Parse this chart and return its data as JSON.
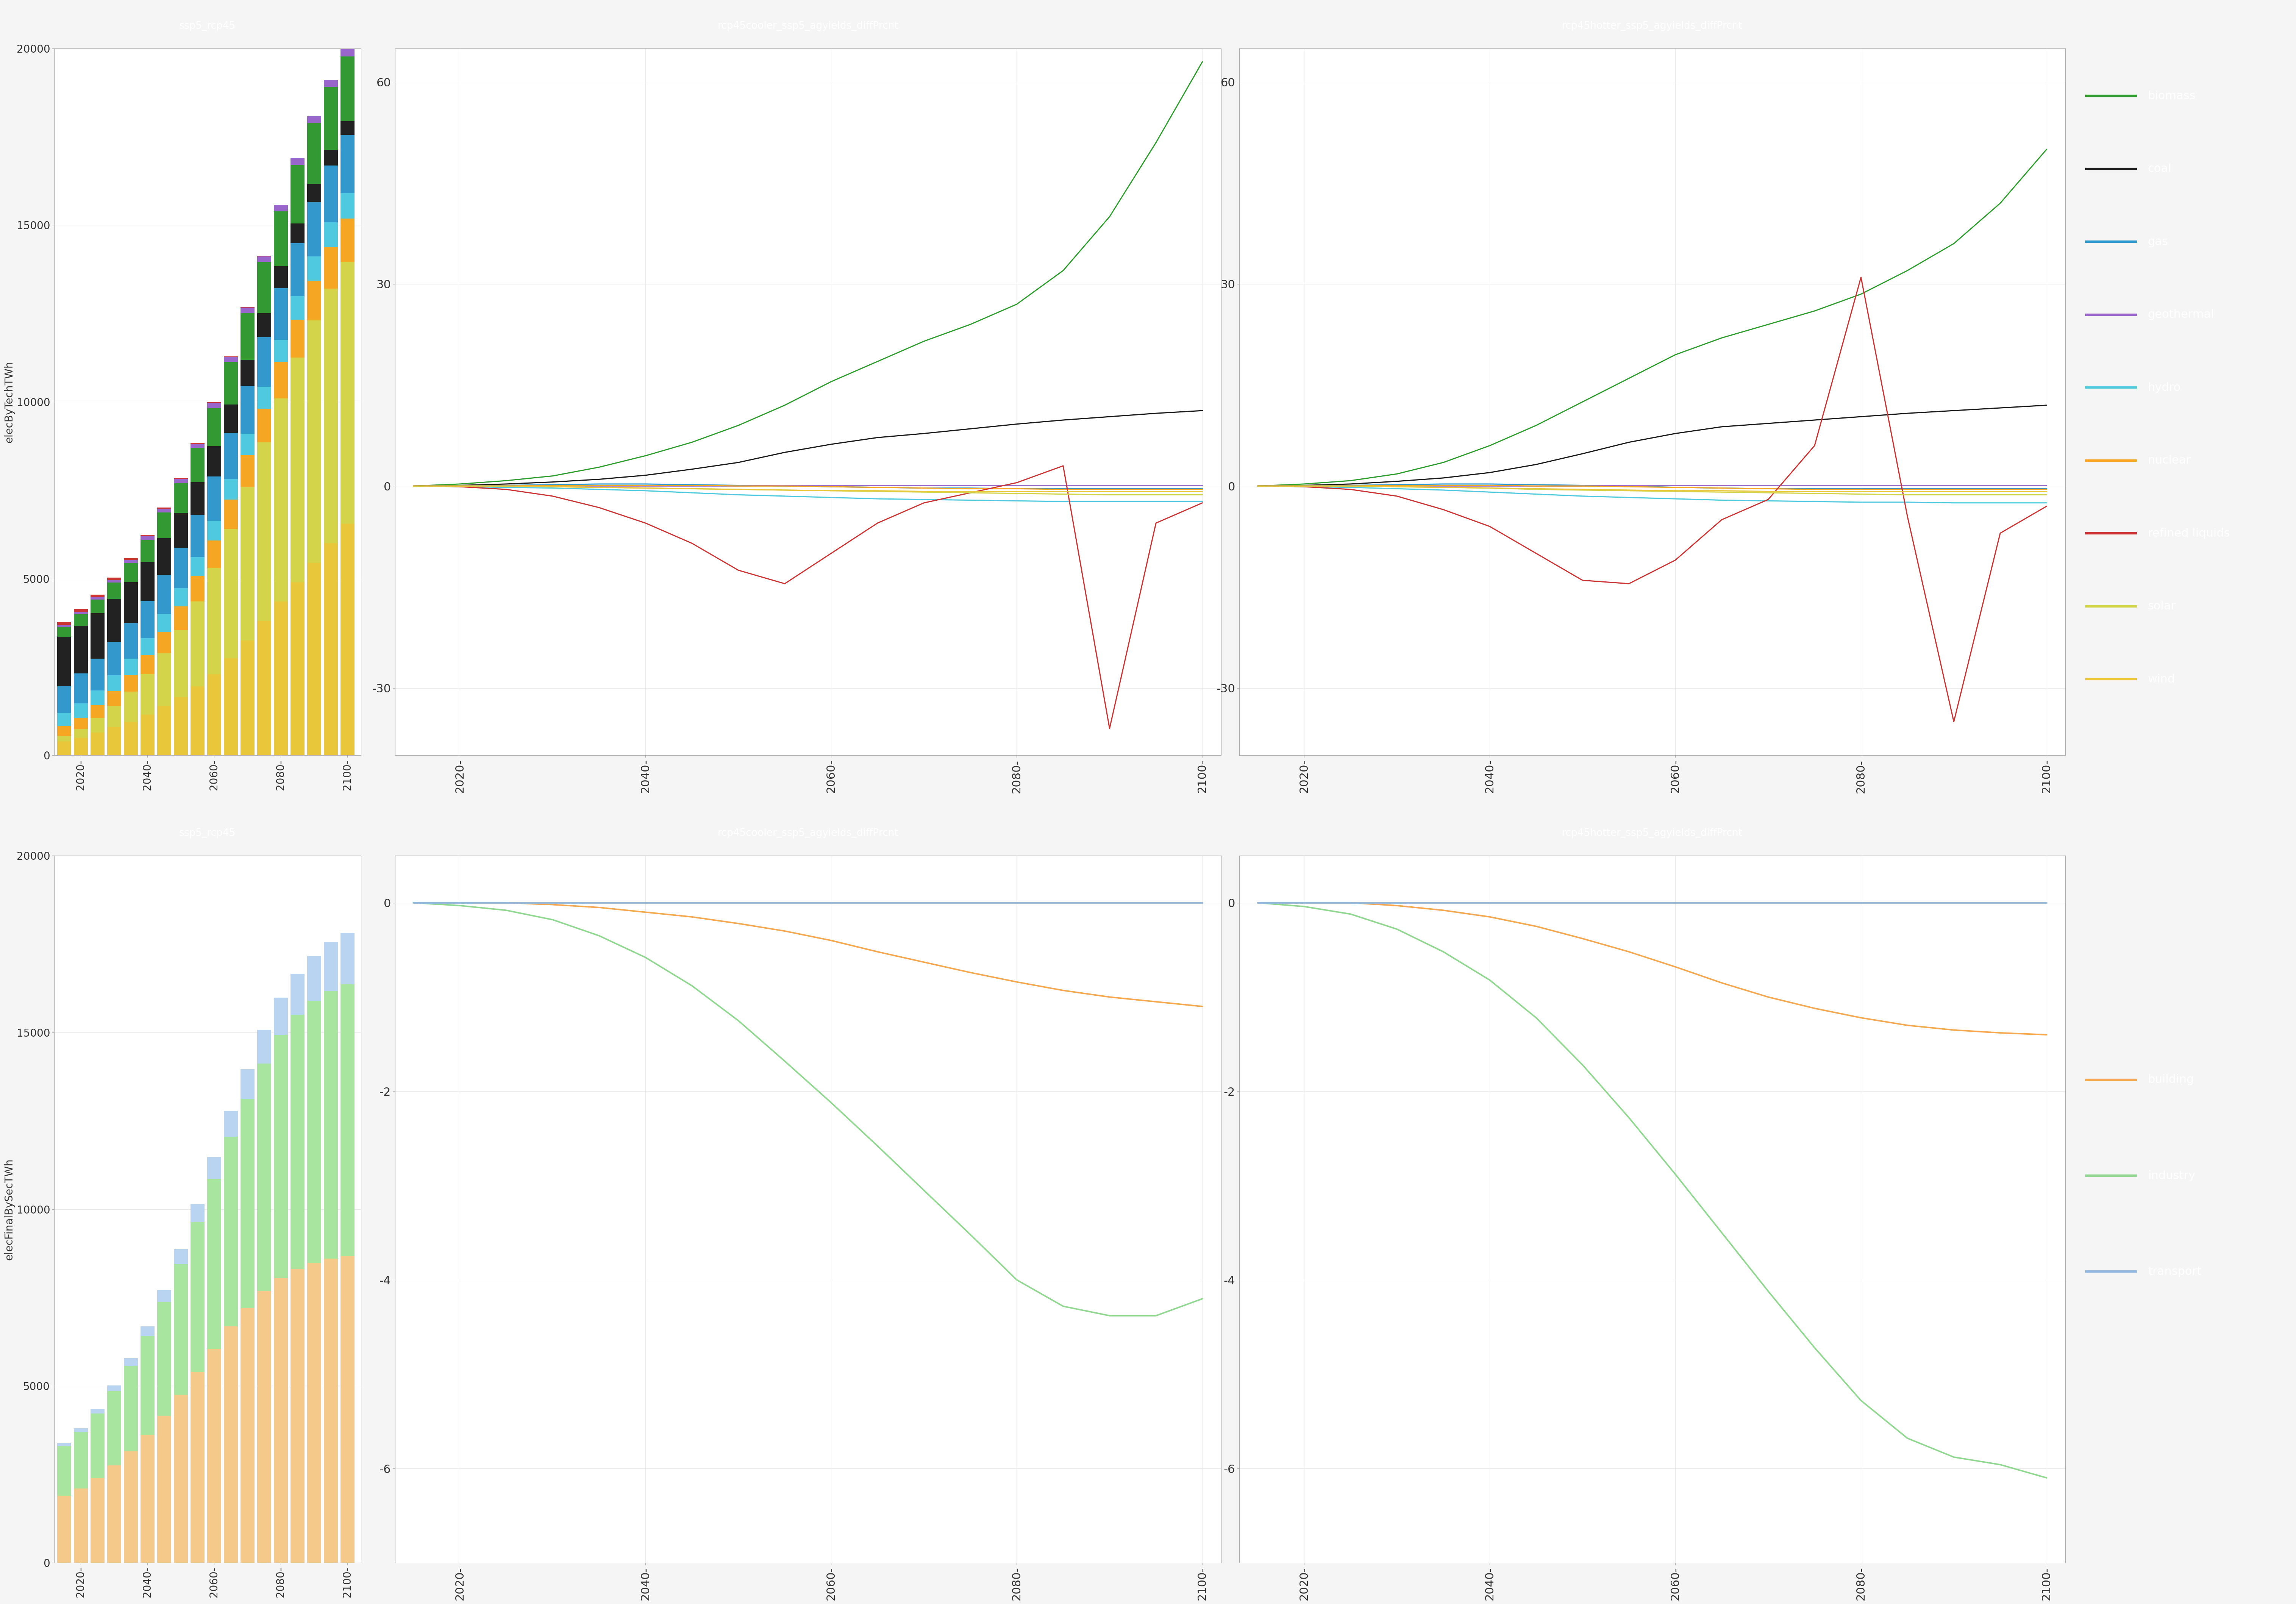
{
  "fig_bg": "#f5f5f5",
  "panel_outer_bg": "#3d3d3d",
  "plot_bg": "#ffffff",
  "title_bar_color": "#595959",
  "title_text_color": "#ffffff",
  "grid_color": "#e8e8e8",
  "text_color": "#333333",
  "axis_line_color": "#aaaaaa",
  "tick_color": "#aaaaaa",
  "years": [
    2015,
    2020,
    2025,
    2030,
    2035,
    2040,
    2045,
    2050,
    2055,
    2060,
    2065,
    2070,
    2075,
    2080,
    2085,
    2090,
    2095,
    2100
  ],
  "bar_tech_stacking_order": [
    "wind",
    "solar",
    "nuclear",
    "hydro",
    "gas",
    "coal",
    "biomass",
    "geothermal",
    "refined liquids"
  ],
  "bar_tech_colors": {
    "wind": "#e8c73a",
    "solar": "#d4d44a",
    "nuclear": "#f5a623",
    "hydro": "#4ec9e0",
    "gas": "#3399cc",
    "coal": "#222222",
    "biomass": "#339933",
    "geothermal": "#9966cc",
    "refined liquids": "#cc3333"
  },
  "bar_tech_data": {
    "wind": [
      400,
      500,
      650,
      800,
      950,
      1150,
      1400,
      1650,
      1950,
      2300,
      2750,
      3250,
      3800,
      4350,
      4900,
      5450,
      6000,
      6550
    ],
    "solar": [
      150,
      250,
      400,
      600,
      850,
      1150,
      1500,
      1900,
      2400,
      3000,
      3650,
      4350,
      5050,
      5750,
      6350,
      6850,
      7200,
      7400
    ],
    "nuclear": [
      280,
      320,
      370,
      420,
      480,
      540,
      600,
      660,
      720,
      780,
      840,
      900,
      960,
      1020,
      1080,
      1130,
      1180,
      1230
    ],
    "hydro": [
      380,
      400,
      420,
      440,
      460,
      480,
      500,
      520,
      540,
      560,
      580,
      600,
      620,
      640,
      660,
      680,
      700,
      720
    ],
    "gas": [
      750,
      850,
      900,
      950,
      1000,
      1050,
      1100,
      1150,
      1200,
      1250,
      1300,
      1350,
      1400,
      1450,
      1500,
      1550,
      1600,
      1650
    ],
    "coal": [
      1400,
      1350,
      1280,
      1220,
      1160,
      1100,
      1040,
      980,
      920,
      860,
      800,
      740,
      680,
      620,
      560,
      500,
      440,
      390
    ],
    "biomass": [
      280,
      330,
      390,
      460,
      540,
      630,
      730,
      840,
      960,
      1080,
      1200,
      1320,
      1440,
      1560,
      1650,
      1720,
      1780,
      1830
    ],
    "geothermal": [
      45,
      55,
      65,
      75,
      85,
      95,
      105,
      115,
      125,
      135,
      145,
      155,
      165,
      175,
      185,
      195,
      205,
      215
    ],
    "refined liquids": [
      90,
      80,
      70,
      60,
      52,
      44,
      38,
      32,
      26,
      22,
      18,
      14,
      11,
      8,
      6,
      4,
      3,
      2
    ]
  },
  "bar_sec_stacking_order": [
    "building",
    "industry",
    "transport"
  ],
  "bar_sec_colors": {
    "building": "#f5c98a",
    "industry": "#a8e6a0",
    "transport": "#b8d4f0"
  },
  "bar_sec_data": {
    "transport": [
      80,
      100,
      130,
      165,
      210,
      268,
      338,
      420,
      515,
      622,
      730,
      840,
      948,
      1055,
      1160,
      1263,
      1363,
      1460
    ],
    "industry": [
      1400,
      1600,
      1820,
      2100,
      2420,
      2800,
      3220,
      3700,
      4230,
      4800,
      5370,
      5920,
      6440,
      6880,
      7200,
      7420,
      7580,
      7680
    ],
    "building": [
      1900,
      2100,
      2400,
      2750,
      3150,
      3620,
      4150,
      4750,
      5400,
      6050,
      6680,
      7200,
      7680,
      8050,
      8300,
      8480,
      8600,
      8680
    ]
  },
  "line_tech_colors": {
    "biomass": "#2d9e2d",
    "coal": "#1a1a1a",
    "gas": "#3399cc",
    "geothermal": "#9966cc",
    "hydro": "#4ec9e0",
    "nuclear": "#f5a623",
    "refined liquids": "#cc3333",
    "solar": "#d4d44a",
    "wind": "#e8c73a"
  },
  "cooler_tech": {
    "biomass": [
      0.0,
      0.3,
      0.8,
      1.5,
      2.8,
      4.5,
      6.5,
      9.0,
      12.0,
      15.5,
      18.5,
      21.5,
      24.0,
      27.0,
      32.0,
      40.0,
      51.0,
      63.0
    ],
    "coal": [
      0.0,
      0.1,
      0.3,
      0.6,
      1.0,
      1.6,
      2.5,
      3.5,
      5.0,
      6.2,
      7.2,
      7.8,
      8.5,
      9.2,
      9.8,
      10.3,
      10.8,
      11.2
    ],
    "gas": [
      0.0,
      0.0,
      0.1,
      0.2,
      0.3,
      0.3,
      0.2,
      0.1,
      0.0,
      -0.1,
      -0.2,
      -0.3,
      -0.3,
      -0.4,
      -0.4,
      -0.4,
      -0.4,
      -0.4
    ],
    "geothermal": [
      0.0,
      0.0,
      0.0,
      0.0,
      0.0,
      0.0,
      0.0,
      0.0,
      0.1,
      0.1,
      0.1,
      0.1,
      0.1,
      0.1,
      0.1,
      0.1,
      0.1,
      0.1
    ],
    "hydro": [
      0.0,
      -0.1,
      -0.2,
      -0.3,
      -0.5,
      -0.7,
      -1.0,
      -1.3,
      -1.5,
      -1.7,
      -1.9,
      -2.0,
      -2.1,
      -2.2,
      -2.3,
      -2.3,
      -2.3,
      -2.3
    ],
    "nuclear": [
      0.0,
      0.0,
      0.0,
      0.1,
      0.1,
      0.1,
      0.1,
      0.0,
      0.0,
      -0.1,
      -0.2,
      -0.3,
      -0.4,
      -0.4,
      -0.5,
      -0.5,
      -0.5,
      -0.5
    ],
    "refined liquids": [
      0.0,
      -0.1,
      -0.5,
      -1.5,
      -3.2,
      -5.5,
      -8.5,
      -12.5,
      -14.5,
      -10.0,
      -5.5,
      -2.5,
      -1.0,
      0.5,
      3.0,
      -36.0,
      -5.5,
      -2.5
    ],
    "solar": [
      0.0,
      0.0,
      0.0,
      -0.1,
      -0.2,
      -0.3,
      -0.4,
      -0.5,
      -0.6,
      -0.7,
      -0.8,
      -0.9,
      -1.0,
      -1.1,
      -1.2,
      -1.3,
      -1.3,
      -1.3
    ],
    "wind": [
      0.0,
      0.0,
      0.0,
      -0.1,
      -0.2,
      -0.3,
      -0.4,
      -0.5,
      -0.6,
      -0.7,
      -0.7,
      -0.8,
      -0.8,
      -0.8,
      -0.8,
      -0.8,
      -0.8,
      -0.8
    ]
  },
  "hotter_tech": {
    "biomass": [
      0.0,
      0.3,
      0.8,
      1.8,
      3.5,
      6.0,
      9.0,
      12.5,
      16.0,
      19.5,
      22.0,
      24.0,
      26.0,
      28.5,
      32.0,
      36.0,
      42.0,
      50.0
    ],
    "coal": [
      0.0,
      0.1,
      0.3,
      0.7,
      1.2,
      2.0,
      3.2,
      4.8,
      6.5,
      7.8,
      8.8,
      9.3,
      9.8,
      10.3,
      10.8,
      11.2,
      11.6,
      12.0
    ],
    "gas": [
      0.0,
      0.0,
      0.1,
      0.2,
      0.3,
      0.3,
      0.2,
      0.1,
      0.0,
      -0.2,
      -0.3,
      -0.4,
      -0.4,
      -0.4,
      -0.4,
      -0.4,
      -0.4,
      -0.4
    ],
    "geothermal": [
      0.0,
      0.0,
      0.0,
      0.0,
      0.0,
      0.0,
      0.0,
      0.0,
      0.1,
      0.1,
      0.1,
      0.1,
      0.1,
      0.1,
      0.1,
      0.1,
      0.1,
      0.1
    ],
    "hydro": [
      0.0,
      -0.1,
      -0.2,
      -0.4,
      -0.6,
      -0.9,
      -1.2,
      -1.5,
      -1.7,
      -1.9,
      -2.1,
      -2.2,
      -2.3,
      -2.4,
      -2.4,
      -2.5,
      -2.5,
      -2.5
    ],
    "nuclear": [
      0.0,
      0.0,
      0.0,
      0.1,
      0.1,
      0.1,
      0.0,
      0.0,
      -0.1,
      -0.2,
      -0.3,
      -0.4,
      -0.5,
      -0.5,
      -0.5,
      -0.5,
      -0.5,
      -0.5
    ],
    "refined liquids": [
      0.0,
      -0.1,
      -0.5,
      -1.5,
      -3.5,
      -6.0,
      -10.0,
      -14.0,
      -14.5,
      -11.0,
      -5.0,
      -2.0,
      6.0,
      31.0,
      -4.5,
      -35.0,
      -7.0,
      -3.0
    ],
    "solar": [
      0.0,
      0.0,
      0.0,
      -0.1,
      -0.2,
      -0.3,
      -0.5,
      -0.6,
      -0.7,
      -0.8,
      -0.9,
      -1.0,
      -1.1,
      -1.2,
      -1.3,
      -1.3,
      -1.3,
      -1.3
    ],
    "wind": [
      0.0,
      0.0,
      0.0,
      -0.1,
      -0.2,
      -0.3,
      -0.4,
      -0.5,
      -0.6,
      -0.7,
      -0.7,
      -0.8,
      -0.8,
      -0.8,
      -0.8,
      -0.8,
      -0.8,
      -0.8
    ]
  },
  "line_sec_colors": {
    "building": "#f5a850",
    "industry": "#90d890",
    "transport": "#90b8e0"
  },
  "cooler_sec": {
    "building": [
      0.0,
      0.0,
      0.0,
      -0.02,
      -0.05,
      -0.1,
      -0.15,
      -0.22,
      -0.3,
      -0.4,
      -0.52,
      -0.63,
      -0.74,
      -0.84,
      -0.93,
      -1.0,
      -1.05,
      -1.1
    ],
    "industry": [
      0.0,
      -0.03,
      -0.08,
      -0.18,
      -0.35,
      -0.58,
      -0.88,
      -1.25,
      -1.68,
      -2.12,
      -2.58,
      -3.05,
      -3.52,
      -4.0,
      -4.28,
      -4.38,
      -4.38,
      -4.2
    ],
    "transport": [
      0.0,
      0.0,
      0.0,
      0.0,
      0.0,
      0.0,
      0.0,
      0.0,
      0.0,
      0.0,
      0.0,
      0.0,
      0.0,
      0.0,
      0.0,
      0.0,
      0.0,
      0.0
    ]
  },
  "hotter_sec": {
    "building": [
      0.0,
      0.0,
      0.0,
      -0.03,
      -0.08,
      -0.15,
      -0.25,
      -0.38,
      -0.52,
      -0.68,
      -0.85,
      -1.0,
      -1.12,
      -1.22,
      -1.3,
      -1.35,
      -1.38,
      -1.4
    ],
    "industry": [
      0.0,
      -0.04,
      -0.12,
      -0.28,
      -0.52,
      -0.82,
      -1.22,
      -1.72,
      -2.28,
      -2.88,
      -3.5,
      -4.12,
      -4.72,
      -5.28,
      -5.68,
      -5.88,
      -5.96,
      -6.1
    ],
    "transport": [
      0.0,
      0.0,
      0.0,
      0.0,
      0.0,
      0.0,
      0.0,
      0.0,
      0.0,
      0.0,
      0.0,
      0.0,
      0.0,
      0.0,
      0.0,
      0.0,
      0.0,
      0.0
    ]
  },
  "subplot_titles": {
    "cooler_tech": "rcp45cooler_ssp5_agyields_diffPrcnt",
    "hotter_tech": "rcp45hotter_ssp5_agyields_diffPrcnt",
    "cooler_sec": "rcp45cooler_ssp5_agyields_diffPrcnt",
    "hotter_sec": "rcp45hotter_ssp5_agyields_diffPrcnt"
  },
  "bar_ylabel_tech": "elecByTechTWh",
  "bar_ylabel_sec": "elecFinalBySecTWh",
  "bar_title": "ssp5_rcp45",
  "ylim_tech": [
    -40,
    65
  ],
  "ylim_sec": [
    -7,
    0.5
  ],
  "yticks_tech": [
    -30,
    0,
    30,
    60
  ],
  "yticks_sec": [
    -6,
    -4,
    -2,
    0
  ],
  "xtick_years": [
    2020,
    2040,
    2060,
    2080,
    2100
  ],
  "bar_xtick_years": [
    2020,
    2040,
    2060,
    2080,
    2100
  ],
  "bar_ylim_tech": [
    0,
    20000
  ],
  "bar_yticks_tech": [
    0,
    5000,
    10000,
    15000,
    20000
  ],
  "bar_ylim_sec": [
    0,
    20000
  ],
  "bar_yticks_sec": [
    0,
    5000,
    10000,
    15000,
    20000
  ]
}
